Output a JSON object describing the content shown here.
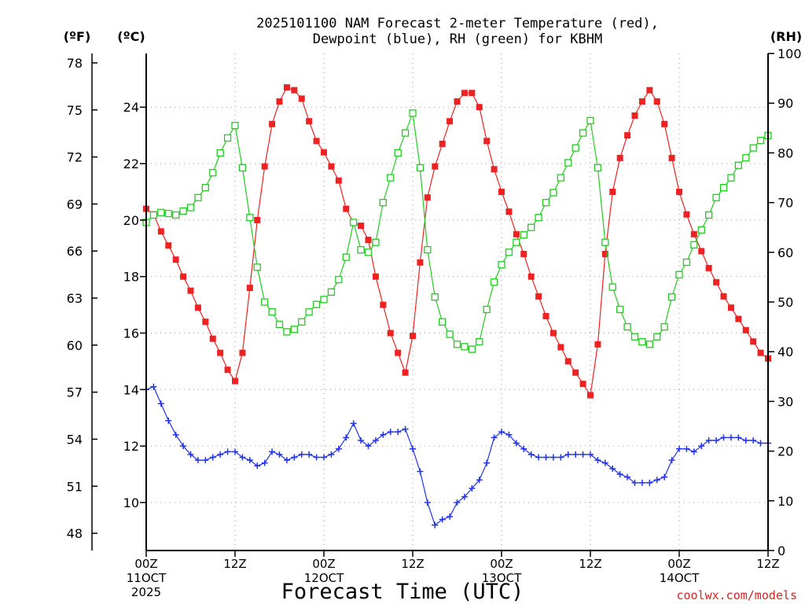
{
  "chart_data": {
    "type": "line",
    "title_line1": "2025101100 NAM Forecast 2-meter Temperature (red),",
    "title_line2": "Dewpoint (blue), RH (green) for KBHM",
    "left_axis_f_label": "(ºF)",
    "left_axis_c_label": "(ºC)",
    "right_axis_label": "(RH)",
    "xlabel": "Forecast Time (UTC)",
    "watermark": "coolwx.com/models",
    "x_unit": "forecast hour",
    "xlim": [
      0,
      84
    ],
    "x_ticks": [
      {
        "hour": 0,
        "line1": "00Z",
        "line2": "11OCT",
        "line3": "2025"
      },
      {
        "hour": 12,
        "line1": "12Z",
        "line2": "",
        "line3": ""
      },
      {
        "hour": 24,
        "line1": "00Z",
        "line2": "12OCT",
        "line3": ""
      },
      {
        "hour": 36,
        "line1": "12Z",
        "line2": "",
        "line3": ""
      },
      {
        "hour": 48,
        "line1": "00Z",
        "line2": "13OCT",
        "line3": ""
      },
      {
        "hour": 60,
        "line1": "12Z",
        "line2": "",
        "line3": ""
      },
      {
        "hour": 72,
        "line1": "00Z",
        "line2": "14OCT",
        "line3": ""
      },
      {
        "hour": 84,
        "line1": "12Z",
        "line2": "",
        "line3": ""
      }
    ],
    "y_celsius": {
      "lim": [
        8.3,
        25.9
      ],
      "ticks": [
        10,
        12,
        14,
        16,
        18,
        20,
        22,
        24
      ]
    },
    "y_fahrenheit": {
      "lim": [
        46.9,
        78.6
      ],
      "ticks": [
        48,
        51,
        54,
        57,
        60,
        63,
        66,
        69,
        72,
        75,
        78
      ]
    },
    "y_rh": {
      "lim": [
        0,
        100
      ],
      "ticks": [
        0,
        10,
        20,
        30,
        40,
        50,
        60,
        70,
        80,
        90,
        100
      ]
    },
    "series": [
      {
        "name": "Temperature",
        "unit": "C",
        "color": "#ee2222",
        "marker": "filled-square",
        "x": [
          0,
          1,
          2,
          3,
          4,
          5,
          6,
          7,
          8,
          9,
          10,
          11,
          12,
          13,
          14,
          15,
          16,
          17,
          18,
          19,
          20,
          21,
          22,
          23,
          24,
          25,
          26,
          27,
          28,
          29,
          30,
          31,
          32,
          33,
          34,
          35,
          36,
          37,
          38,
          39,
          40,
          41,
          42,
          43,
          44,
          45,
          46,
          47,
          48,
          49,
          50,
          51,
          52,
          53,
          54,
          55,
          56,
          57,
          58,
          59,
          60,
          61,
          62,
          63,
          64,
          65,
          66,
          67,
          68,
          69,
          70,
          71,
          72,
          73,
          74,
          75,
          76,
          77,
          78,
          79,
          80,
          81,
          82,
          83,
          84
        ],
        "values": [
          20.4,
          20.2,
          19.6,
          19.1,
          18.6,
          18.0,
          17.5,
          16.9,
          16.4,
          15.8,
          15.3,
          14.7,
          14.3,
          15.3,
          17.6,
          20.0,
          21.9,
          23.4,
          24.2,
          24.7,
          24.6,
          24.3,
          23.5,
          22.8,
          22.4,
          21.9,
          21.4,
          20.4,
          19.9,
          19.8,
          19.3,
          18.0,
          17.0,
          16.0,
          15.3,
          14.6,
          15.9,
          18.5,
          20.8,
          21.9,
          22.7,
          23.5,
          24.2,
          24.5,
          24.5,
          24.0,
          22.8,
          21.8,
          21.0,
          20.3,
          19.5,
          18.8,
          18.0,
          17.3,
          16.6,
          16.0,
          15.5,
          15.0,
          14.6,
          14.2,
          13.8,
          15.6,
          18.8,
          21.0,
          22.2,
          23.0,
          23.7,
          24.2,
          24.6,
          24.2,
          23.4,
          22.2,
          21.0,
          20.2,
          19.5,
          18.9,
          18.3,
          17.8,
          17.3,
          16.9,
          16.5,
          16.1,
          15.7,
          15.3,
          15.1
        ]
      },
      {
        "name": "Dewpoint",
        "unit": "C",
        "color": "#2233ee",
        "marker": "plus",
        "x": [
          0,
          1,
          2,
          3,
          4,
          5,
          6,
          7,
          8,
          9,
          10,
          11,
          12,
          13,
          14,
          15,
          16,
          17,
          18,
          19,
          20,
          21,
          22,
          23,
          24,
          25,
          26,
          27,
          28,
          29,
          30,
          31,
          32,
          33,
          34,
          35,
          36,
          37,
          38,
          39,
          40,
          41,
          42,
          43,
          44,
          45,
          46,
          47,
          48,
          49,
          50,
          51,
          52,
          53,
          54,
          55,
          56,
          57,
          58,
          59,
          60,
          61,
          62,
          63,
          64,
          65,
          66,
          67,
          68,
          69,
          70,
          71,
          72,
          73,
          74,
          75,
          76,
          77,
          78,
          79,
          80,
          81,
          82,
          83,
          84
        ],
        "values": [
          14.0,
          14.1,
          13.5,
          12.9,
          12.4,
          12.0,
          11.7,
          11.5,
          11.5,
          11.6,
          11.7,
          11.8,
          11.8,
          11.6,
          11.5,
          11.3,
          11.4,
          11.8,
          11.7,
          11.5,
          11.6,
          11.7,
          11.7,
          11.6,
          11.6,
          11.7,
          11.9,
          12.3,
          12.8,
          12.2,
          12.0,
          12.2,
          12.4,
          12.5,
          12.5,
          12.6,
          11.9,
          11.1,
          10.0,
          9.2,
          9.4,
          9.5,
          10.0,
          10.2,
          10.5,
          10.8,
          11.4,
          12.3,
          12.5,
          12.4,
          12.1,
          11.9,
          11.7,
          11.6,
          11.6,
          11.6,
          11.6,
          11.7,
          11.7,
          11.7,
          11.7,
          11.5,
          11.4,
          11.2,
          11.0,
          10.9,
          10.7,
          10.7,
          10.7,
          10.8,
          10.9,
          11.5,
          11.9,
          11.9,
          11.8,
          12.0,
          12.2,
          12.2,
          12.3,
          12.3,
          12.3,
          12.2,
          12.2,
          12.1,
          12.1
        ]
      },
      {
        "name": "RH",
        "unit": "%",
        "color": "#22cc22",
        "marker": "open-square",
        "x": [
          0,
          1,
          2,
          3,
          4,
          5,
          6,
          7,
          8,
          9,
          10,
          11,
          12,
          13,
          14,
          15,
          16,
          17,
          18,
          19,
          20,
          21,
          22,
          23,
          24,
          25,
          26,
          27,
          28,
          29,
          30,
          31,
          32,
          33,
          34,
          35,
          36,
          37,
          38,
          39,
          40,
          41,
          42,
          43,
          44,
          45,
          46,
          47,
          48,
          49,
          50,
          51,
          52,
          53,
          54,
          55,
          56,
          57,
          58,
          59,
          60,
          61,
          62,
          63,
          64,
          65,
          66,
          67,
          68,
          69,
          70,
          71,
          72,
          73,
          74,
          75,
          76,
          77,
          78,
          79,
          80,
          81,
          82,
          83,
          84
        ],
        "values": [
          66,
          67.5,
          68,
          67.8,
          67.5,
          68.3,
          69,
          71,
          73,
          76,
          80,
          83,
          85.5,
          77,
          67,
          57,
          50,
          48,
          45.5,
          44,
          44.5,
          46,
          48,
          49.5,
          50.5,
          52,
          54.5,
          59,
          66,
          60.5,
          60,
          62,
          70,
          75,
          80,
          84,
          88,
          77,
          60.5,
          51,
          46,
          43.5,
          41.5,
          41,
          40.5,
          42,
          48.5,
          54,
          57.5,
          60,
          62,
          63.5,
          65,
          67,
          70,
          72,
          75,
          78,
          81,
          84,
          86.5,
          77,
          62,
          53,
          48.5,
          45,
          43,
          42,
          41.5,
          43,
          45,
          51,
          55.5,
          58,
          61.5,
          64.5,
          67.5,
          71,
          73,
          75,
          77.5,
          79,
          81,
          82.5,
          83.5
        ]
      }
    ]
  }
}
